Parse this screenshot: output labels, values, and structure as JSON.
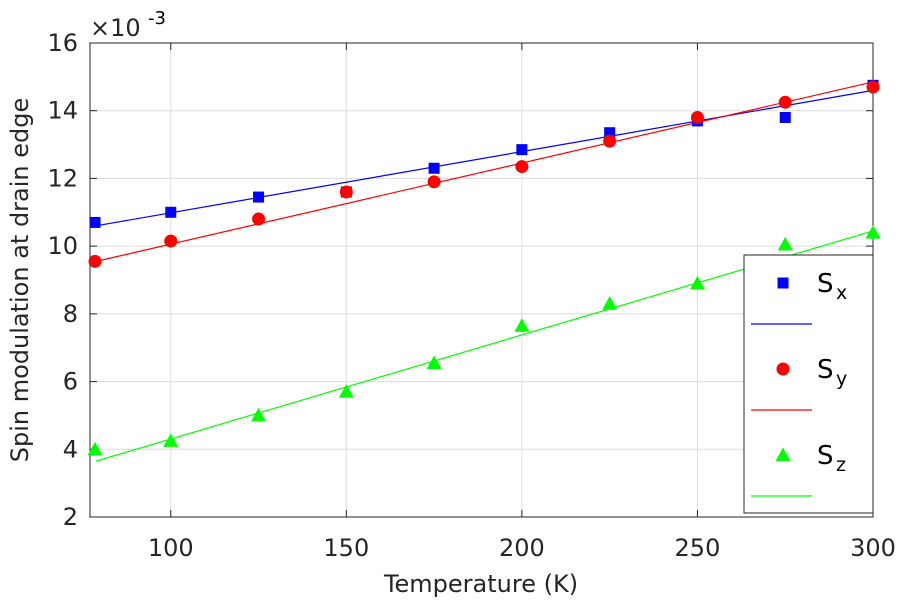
{
  "chart_data": {
    "type": "scatter",
    "xlabel": "Temperature (K)",
    "ylabel": "Spin modulation at drain edge",
    "exponent_base": "×10",
    "exponent_power": "-3",
    "xlim": [
      77,
      300
    ],
    "ylim": [
      2,
      16
    ],
    "xticks": [
      100,
      150,
      200,
      250,
      300
    ],
    "yticks": [
      2,
      4,
      6,
      8,
      10,
      12,
      14,
      16
    ],
    "grid": true,
    "legend_position": "bottom-right",
    "x": [
      77,
      100,
      125,
      150,
      175,
      200,
      225,
      250,
      275,
      300
    ],
    "series": [
      {
        "name": "S",
        "subscript": "x",
        "marker": "square",
        "color": "#0000ff",
        "values": [
          10.7,
          11.0,
          11.45,
          11.6,
          12.3,
          12.85,
          13.35,
          13.7,
          13.8,
          14.75
        ],
        "fit": [
          10.6,
          14.6
        ]
      },
      {
        "name": "S",
        "subscript": "y",
        "marker": "circle",
        "color": "#ff0000",
        "values": [
          9.55,
          10.15,
          10.8,
          11.6,
          11.9,
          12.35,
          13.1,
          13.8,
          14.25,
          14.7
        ],
        "fit": [
          9.55,
          14.85
        ]
      },
      {
        "name": "S",
        "subscript": "z",
        "marker": "triangle",
        "color": "#00ff00",
        "values": [
          4.0,
          4.25,
          5.0,
          5.7,
          6.55,
          7.65,
          8.3,
          8.9,
          10.05,
          10.4
        ],
        "fit": [
          3.65,
          10.45
        ]
      }
    ]
  }
}
